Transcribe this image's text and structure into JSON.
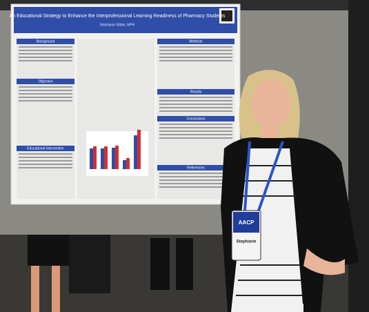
{
  "poster": {
    "title": "An Educational Strategy to Enhance the Interprofessional Learning Readiness of Pharmacy Students",
    "authors": "Stephanie Gibbs, MPH",
    "sections": [
      "Background",
      "Objective",
      "Methods",
      "Results",
      "Conclusions",
      "Educational Intervention",
      "References"
    ]
  },
  "badge": {
    "org": "AACP",
    "name": "Stephanie"
  }
}
